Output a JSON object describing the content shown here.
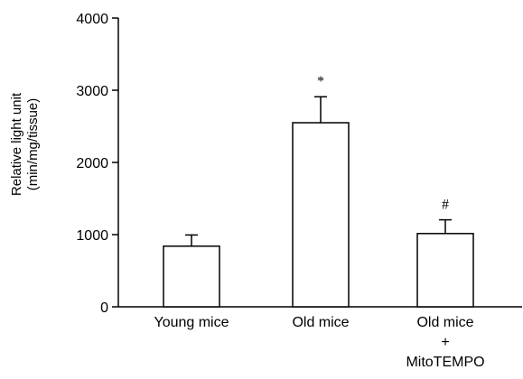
{
  "chart_data": {
    "type": "bar",
    "categories": [
      [
        "Young mice"
      ],
      [
        "Old mice"
      ],
      [
        "Old mice",
        "+",
        "MitoTEMPO"
      ]
    ],
    "values": [
      840,
      2550,
      1015
    ],
    "errors": [
      155,
      360,
      190
    ],
    "annotations": [
      "",
      "*",
      "#"
    ],
    "title": "",
    "xlabel": "",
    "ylabel": [
      "Relative light unit",
      "(min/mg/tissue)"
    ],
    "ylim": [
      0,
      4000
    ],
    "yticks": [
      0,
      1000,
      2000,
      3000,
      4000
    ],
    "grid": false,
    "bar_fill": "#ffffff",
    "bar_stroke": "#000000"
  }
}
